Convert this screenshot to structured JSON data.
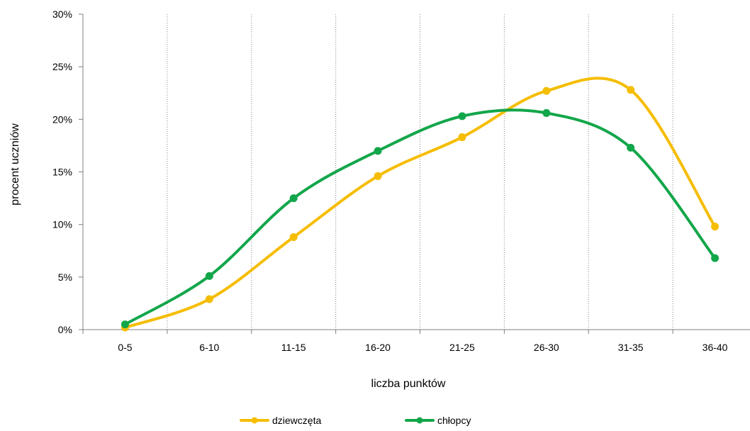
{
  "chart_data": {
    "type": "line",
    "title": "",
    "xlabel": "liczba punktów",
    "ylabel": "procent  uczniów",
    "categories": [
      "0-5",
      "6-10",
      "11-15",
      "16-20",
      "21-25",
      "26-30",
      "31-35",
      "36-40"
    ],
    "ylim": [
      0,
      30
    ],
    "yticks": [
      0,
      5,
      10,
      15,
      20,
      25,
      30
    ],
    "ytick_labels": [
      "0%",
      "5%",
      "10%",
      "15%",
      "20%",
      "25%",
      "30%"
    ],
    "grid": "vertical dotted",
    "legend_position": "bottom",
    "smooth": true,
    "series": [
      {
        "name": "dziewczęta",
        "color": "#f5bd00",
        "values": [
          0.2,
          2.9,
          8.8,
          14.6,
          18.3,
          22.7,
          22.8,
          9.8
        ]
      },
      {
        "name": "chłopcy",
        "color": "#12a64a",
        "values": [
          0.5,
          5.1,
          12.5,
          17.0,
          20.3,
          20.6,
          17.3,
          6.8
        ]
      }
    ]
  }
}
